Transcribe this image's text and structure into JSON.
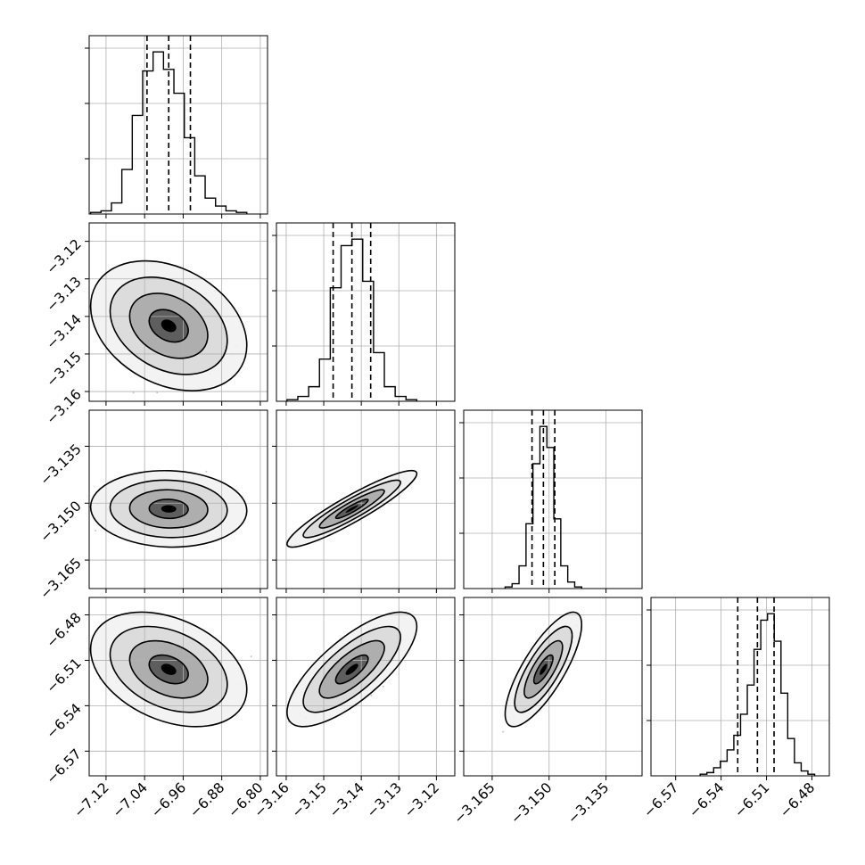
{
  "chart_data": {
    "type": "corner",
    "title": "",
    "params": [
      {
        "label": "",
        "center": -6.99,
        "sigma": 0.045,
        "quantiles": [
          -7.035,
          -6.99,
          -6.945
        ],
        "xlim": [
          -7.155,
          -6.785
        ],
        "ticks": [
          -7.12,
          -7.04,
          -6.96,
          -6.88,
          -6.8
        ],
        "tick_labels": [
          "−7.12",
          "−7.04",
          "−6.96",
          "−6.88",
          "−6.80"
        ]
      },
      {
        "label": "",
        "center": -3.1425,
        "sigma": 0.0048,
        "quantiles": [
          -3.1475,
          -3.1425,
          -3.1375
        ],
        "xlim": [
          -3.1626,
          -3.1151
        ],
        "ticks": [
          -3.16,
          -3.15,
          -3.14,
          -3.13,
          -3.12
        ],
        "tick_labels": [
          "−3.16",
          "−3.15",
          "−3.14",
          "−3.13",
          "−3.12"
        ]
      },
      {
        "label": "",
        "center": -3.1515,
        "sigma": 0.0028,
        "quantiles": [
          -3.1545,
          -3.1515,
          -3.1485
        ],
        "xlim": [
          -3.1725,
          -3.1255
        ],
        "ticks": [
          -3.165,
          -3.15,
          -3.135
        ],
        "tick_labels": [
          "−3.165",
          "−3.150",
          "−3.135"
        ]
      },
      {
        "label": "",
        "center": -6.516,
        "sigma": 0.0105,
        "quantiles": [
          -6.529,
          -6.516,
          -6.505
        ],
        "xlim": [
          -6.5863,
          -6.4685
        ],
        "ticks": [
          -6.57,
          -6.54,
          -6.51,
          -6.48
        ],
        "tick_labels": [
          "−6.57",
          "−6.54",
          "−6.51",
          "−6.48"
        ]
      }
    ],
    "hist_counts": [
      [
        1,
        2,
        7,
        28,
        62,
        90,
        102,
        91,
        76,
        48,
        24,
        10,
        5,
        2,
        1
      ],
      [
        1,
        3,
        9,
        26,
        70,
        96,
        100,
        74,
        30,
        9,
        3,
        1
      ],
      [
        1,
        3,
        14,
        40,
        77,
        100,
        87,
        43,
        14,
        4,
        1
      ],
      [
        1,
        2,
        5,
        9,
        16,
        25,
        38,
        56,
        78,
        96,
        100,
        83,
        51,
        23,
        8,
        3,
        1
      ]
    ],
    "correlations": {
      "1-0": -0.3,
      "2-0": -0.05,
      "2-1": 0.92,
      "3-0": -0.35,
      "3-1": 0.75,
      "3-2": 0.78
    },
    "contour_levels_sigma": [
      0.5,
      1.0,
      1.5,
      2.0
    ],
    "scatter_points": 700,
    "quantile_linestyle": "dashed",
    "grid": true,
    "colors": {
      "line": "#000000",
      "grid": "#b0b0b0",
      "points": "#9a9a9a"
    }
  }
}
